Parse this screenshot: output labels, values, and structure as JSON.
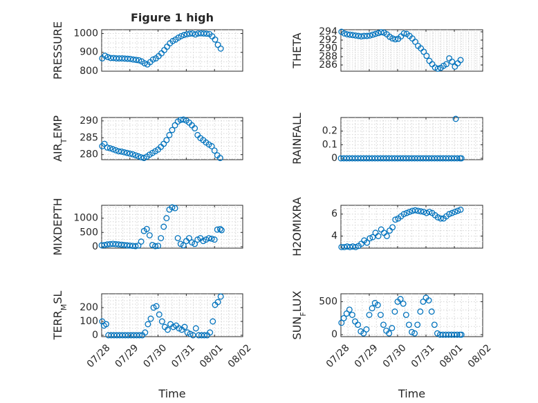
{
  "chart_data": [
    {
      "id": "pressure",
      "type": "scatter",
      "title": "Figure 1 high",
      "ylabel": "PRESSURE",
      "xlabel": "",
      "xlim": [
        0,
        5
      ],
      "ylim": [
        800,
        1020
      ],
      "yticks": [
        800,
        900,
        1000
      ],
      "ytick_labels": [
        "800",
        "900",
        "1000"
      ],
      "xticks": [
        0,
        1,
        2,
        3,
        4,
        5
      ],
      "xtick_labels": [],
      "grid": true,
      "x": [
        0.02,
        0.12,
        0.22,
        0.32,
        0.42,
        0.52,
        0.62,
        0.72,
        0.82,
        0.92,
        1.02,
        1.12,
        1.22,
        1.32,
        1.42,
        1.52,
        1.62,
        1.72,
        1.82,
        1.92,
        2.02,
        2.12,
        2.22,
        2.32,
        2.42,
        2.52,
        2.62,
        2.72,
        2.82,
        2.92,
        3.02,
        3.12,
        3.22,
        3.32,
        3.42,
        3.52,
        3.62,
        3.72,
        3.82,
        3.92,
        4.02,
        4.12,
        4.22
      ],
      "values": [
        868,
        882,
        875,
        870,
        870,
        868,
        868,
        868,
        867,
        866,
        865,
        862,
        860,
        858,
        852,
        842,
        836,
        848,
        862,
        868,
        880,
        895,
        912,
        930,
        948,
        960,
        968,
        978,
        986,
        992,
        996,
        999,
        1000,
        995,
        1000,
        1001,
        1000,
        999,
        997,
        985,
        968,
        940,
        920
      ]
    },
    {
      "id": "theta",
      "type": "scatter",
      "title": "",
      "ylabel": "THETA",
      "xlabel": "",
      "xlim": [
        0,
        5
      ],
      "ylim": [
        284.5,
        294.5
      ],
      "yticks": [
        286,
        288,
        290,
        292,
        294
      ],
      "ytick_labels": [
        "286",
        "288",
        "290",
        "292",
        "294"
      ],
      "xticks": [
        0,
        1,
        2,
        3,
        4,
        5
      ],
      "xtick_labels": [],
      "grid": true,
      "x": [
        0.02,
        0.12,
        0.22,
        0.32,
        0.42,
        0.52,
        0.62,
        0.72,
        0.82,
        0.92,
        1.02,
        1.12,
        1.22,
        1.32,
        1.42,
        1.52,
        1.62,
        1.72,
        1.82,
        1.92,
        2.02,
        2.12,
        2.22,
        2.32,
        2.42,
        2.52,
        2.62,
        2.72,
        2.82,
        2.92,
        3.02,
        3.12,
        3.22,
        3.32,
        3.42,
        3.52,
        3.62,
        3.72,
        3.82,
        3.92,
        4.02,
        4.12,
        4.22
      ],
      "values": [
        294,
        293.6,
        293.4,
        293.3,
        293.2,
        293.1,
        293,
        292.9,
        293,
        293,
        293.1,
        293.3,
        293.5,
        293.7,
        293.9,
        293.8,
        293.4,
        292.8,
        292.4,
        292.2,
        292.3,
        292.9,
        293.6,
        293.5,
        293,
        292.4,
        291.6,
        290.6,
        290,
        289.2,
        288.2,
        287,
        286.2,
        285.4,
        285.1,
        285.3,
        285.8,
        286.2,
        287.6,
        286.8,
        285.6,
        286.4,
        287.2
      ]
    },
    {
      "id": "air-temp",
      "type": "scatter",
      "title": "",
      "ylabel": "AIR_TEMP",
      "ylabel_main": "AIR",
      "ylabel_sub": "T",
      "ylabel_rest": "EMP",
      "xlabel": "",
      "xlim": [
        0,
        5
      ],
      "ylim": [
        278.5,
        291
      ],
      "yticks": [
        280,
        285,
        290
      ],
      "ytick_labels": [
        "280",
        "285",
        "290"
      ],
      "xticks": [
        0,
        1,
        2,
        3,
        4,
        5
      ],
      "xtick_labels": [],
      "grid": true,
      "x": [
        0.02,
        0.1,
        0.2,
        0.3,
        0.4,
        0.5,
        0.6,
        0.7,
        0.8,
        0.9,
        1.0,
        1.1,
        1.2,
        1.3,
        1.4,
        1.5,
        1.6,
        1.7,
        1.8,
        1.9,
        2.0,
        2.1,
        2.2,
        2.3,
        2.4,
        2.5,
        2.6,
        2.7,
        2.8,
        2.9,
        3.0,
        3.1,
        3.2,
        3.3,
        3.4,
        3.5,
        3.6,
        3.7,
        3.8,
        3.9,
        4.0,
        4.1,
        4.2
      ],
      "values": [
        282.5,
        283.2,
        282.1,
        281.9,
        281.6,
        281.3,
        281.0,
        280.9,
        280.7,
        280.5,
        280.3,
        280.1,
        279.8,
        279.5,
        279.2,
        279.0,
        279.4,
        280.0,
        280.5,
        281.0,
        281.5,
        282.3,
        283.2,
        284.3,
        285.8,
        287.3,
        288.7,
        289.8,
        290.3,
        290.4,
        290.1,
        289.5,
        288.7,
        287.8,
        285.8,
        284.9,
        284.3,
        283.6,
        283.0,
        282.5,
        281.2,
        279.8,
        279.0
      ]
    },
    {
      "id": "rainfall",
      "type": "scatter",
      "title": "",
      "ylabel": "RAINFALL",
      "xlabel": "",
      "xlim": [
        0,
        5
      ],
      "ylim": [
        -0.01,
        0.3
      ],
      "yticks": [
        0,
        0.1,
        0.2
      ],
      "ytick_labels": [
        "0",
        "0.1",
        "0.2"
      ],
      "xticks": [
        0,
        1,
        2,
        3,
        4,
        5
      ],
      "xtick_labels": [],
      "grid": true,
      "x": [
        0.0,
        0.1,
        0.2,
        0.3,
        0.4,
        0.5,
        0.6,
        0.7,
        0.8,
        0.9,
        1.0,
        1.1,
        1.2,
        1.3,
        1.4,
        1.5,
        1.6,
        1.7,
        1.8,
        1.9,
        2.0,
        2.1,
        2.2,
        2.3,
        2.4,
        2.5,
        2.6,
        2.7,
        2.8,
        2.9,
        3.0,
        3.1,
        3.2,
        3.3,
        3.4,
        3.5,
        3.6,
        3.7,
        3.8,
        3.9,
        4.0,
        4.1,
        4.2,
        4.25,
        4.05
      ],
      "values": [
        0,
        0,
        0,
        0,
        0,
        0,
        0,
        0,
        0,
        0,
        0,
        0,
        0,
        0,
        0,
        0,
        0,
        0,
        0,
        0,
        0,
        0,
        0,
        0,
        0,
        0,
        0,
        0,
        0,
        0,
        0,
        0,
        0,
        0,
        0,
        0,
        0,
        0,
        0,
        0,
        0,
        0,
        0,
        0,
        0.29
      ]
    },
    {
      "id": "mixdepth",
      "type": "scatter",
      "title": "",
      "ylabel": "MIXDEPTH",
      "xlabel": "",
      "xlim": [
        0,
        5
      ],
      "ylim": [
        -50,
        1450
      ],
      "yticks": [
        0,
        500,
        1000
      ],
      "ytick_labels": [
        "0",
        "500",
        "1000"
      ],
      "xticks": [
        0,
        1,
        2,
        3,
        4,
        5
      ],
      "xtick_labels": [],
      "grid": true,
      "x": [
        0.0,
        0.1,
        0.2,
        0.3,
        0.4,
        0.5,
        0.6,
        0.7,
        0.8,
        0.9,
        1.0,
        1.1,
        1.2,
        1.3,
        1.4,
        1.5,
        1.6,
        1.7,
        1.8,
        1.9,
        2.0,
        2.1,
        2.2,
        2.3,
        2.4,
        2.5,
        2.6,
        2.7,
        2.8,
        2.9,
        3.0,
        3.1,
        3.2,
        3.3,
        3.4,
        3.5,
        3.6,
        3.7,
        3.8,
        3.9,
        4.0,
        4.1,
        4.2,
        4.25
      ],
      "values": [
        50,
        60,
        80,
        90,
        100,
        90,
        80,
        70,
        60,
        50,
        40,
        30,
        20,
        40,
        180,
        550,
        620,
        400,
        60,
        20,
        30,
        300,
        700,
        1000,
        1300,
        1380,
        1350,
        300,
        100,
        50,
        200,
        300,
        150,
        100,
        250,
        300,
        200,
        250,
        300,
        280,
        250,
        600,
        620,
        580
      ]
    },
    {
      "id": "h2omixra",
      "type": "scatter",
      "title": "",
      "ylabel": "H2OMIXRA",
      "xlabel": "",
      "xlim": [
        0,
        5
      ],
      "ylim": [
        2.9,
        6.8
      ],
      "yticks": [
        4,
        6
      ],
      "ytick_labels": [
        "4",
        "6"
      ],
      "xticks": [
        0,
        1,
        2,
        3,
        4,
        5
      ],
      "xtick_labels": [],
      "grid": true,
      "x": [
        0.02,
        0.12,
        0.22,
        0.32,
        0.42,
        0.52,
        0.62,
        0.72,
        0.82,
        0.92,
        1.02,
        1.12,
        1.22,
        1.32,
        1.42,
        1.52,
        1.62,
        1.72,
        1.82,
        1.92,
        2.02,
        2.12,
        2.22,
        2.32,
        2.42,
        2.52,
        2.62,
        2.72,
        2.82,
        2.92,
        3.02,
        3.12,
        3.22,
        3.32,
        3.42,
        3.52,
        3.62,
        3.72,
        3.82,
        3.92,
        4.02,
        4.12,
        4.22
      ],
      "values": [
        3.0,
        3.0,
        3.05,
        3.0,
        3.05,
        3.0,
        3.1,
        3.3,
        3.6,
        3.4,
        3.8,
        3.9,
        4.3,
        4.0,
        4.6,
        4.3,
        4.0,
        4.5,
        4.8,
        5.5,
        5.6,
        5.8,
        6.0,
        6.1,
        6.2,
        6.3,
        6.35,
        6.3,
        6.25,
        6.2,
        6.1,
        6.2,
        6.1,
        5.9,
        5.7,
        5.6,
        5.6,
        5.8,
        6.0,
        6.1,
        6.2,
        6.3,
        6.4
      ]
    },
    {
      "id": "terr-msl",
      "type": "scatter",
      "title": "",
      "ylabel": "TERR_MSL",
      "ylabel_main": "TERR",
      "ylabel_sub": "M",
      "ylabel_rest": "SL",
      "xlabel": "Time",
      "xlim": [
        0,
        5
      ],
      "ylim": [
        -10,
        300
      ],
      "yticks": [
        0,
        100,
        200
      ],
      "ytick_labels": [
        "0",
        "100",
        "200"
      ],
      "xticks": [
        0,
        1,
        2,
        3,
        4,
        5
      ],
      "xtick_labels": [
        "07/28",
        "07/29",
        "07/30",
        "07/31",
        "08/01",
        "08/02"
      ],
      "grid": true,
      "x": [
        0.02,
        0.08,
        0.16,
        0.24,
        0.34,
        0.44,
        0.54,
        0.64,
        0.74,
        0.84,
        0.94,
        1.04,
        1.14,
        1.24,
        1.34,
        1.44,
        1.54,
        1.64,
        1.74,
        1.84,
        1.94,
        2.04,
        2.14,
        2.24,
        2.34,
        2.44,
        2.54,
        2.64,
        2.74,
        2.84,
        2.94,
        3.04,
        3.14,
        3.24,
        3.34,
        3.44,
        3.54,
        3.64,
        3.74,
        3.84,
        3.94,
        4.02,
        4.12,
        4.22
      ],
      "values": [
        100,
        70,
        80,
        0,
        0,
        0,
        0,
        0,
        0,
        0,
        0,
        0,
        0,
        0,
        0,
        0,
        20,
        80,
        120,
        200,
        210,
        150,
        100,
        60,
        40,
        80,
        60,
        70,
        50,
        40,
        60,
        20,
        10,
        0,
        50,
        0,
        0,
        0,
        0,
        20,
        100,
        220,
        240,
        280
      ]
    },
    {
      "id": "sun-flux",
      "type": "scatter",
      "title": "",
      "ylabel": "SUN_FLUX",
      "ylabel_main": "SUN",
      "ylabel_sub": "F",
      "ylabel_rest": "LUX",
      "xlabel": "Time",
      "xlim": [
        0,
        5
      ],
      "ylim": [
        -30,
        620
      ],
      "yticks": [
        0,
        500
      ],
      "ytick_labels": [
        "0",
        "500"
      ],
      "xticks": [
        0,
        1,
        2,
        3,
        4,
        5
      ],
      "xtick_labels": [
        "07/28",
        "07/29",
        "07/30",
        "07/31",
        "08/01",
        "08/02"
      ],
      "grid": true,
      "x": [
        0.02,
        0.1,
        0.2,
        0.3,
        0.4,
        0.5,
        0.6,
        0.7,
        0.8,
        0.9,
        1.0,
        1.1,
        1.2,
        1.3,
        1.4,
        1.5,
        1.6,
        1.7,
        1.8,
        1.9,
        2.0,
        2.1,
        2.2,
        2.3,
        2.4,
        2.5,
        2.6,
        2.7,
        2.8,
        2.9,
        3.0,
        3.1,
        3.2,
        3.3,
        3.4,
        3.5,
        3.6,
        3.7,
        3.8,
        3.9,
        4.0,
        4.1,
        4.2,
        4.25
      ],
      "values": [
        180,
        250,
        320,
        380,
        300,
        200,
        150,
        50,
        20,
        80,
        300,
        400,
        480,
        450,
        300,
        150,
        60,
        20,
        100,
        350,
        500,
        540,
        470,
        300,
        150,
        40,
        20,
        150,
        350,
        500,
        560,
        520,
        350,
        150,
        20,
        0,
        0,
        0,
        0,
        0,
        0,
        0,
        0,
        0
      ]
    }
  ]
}
